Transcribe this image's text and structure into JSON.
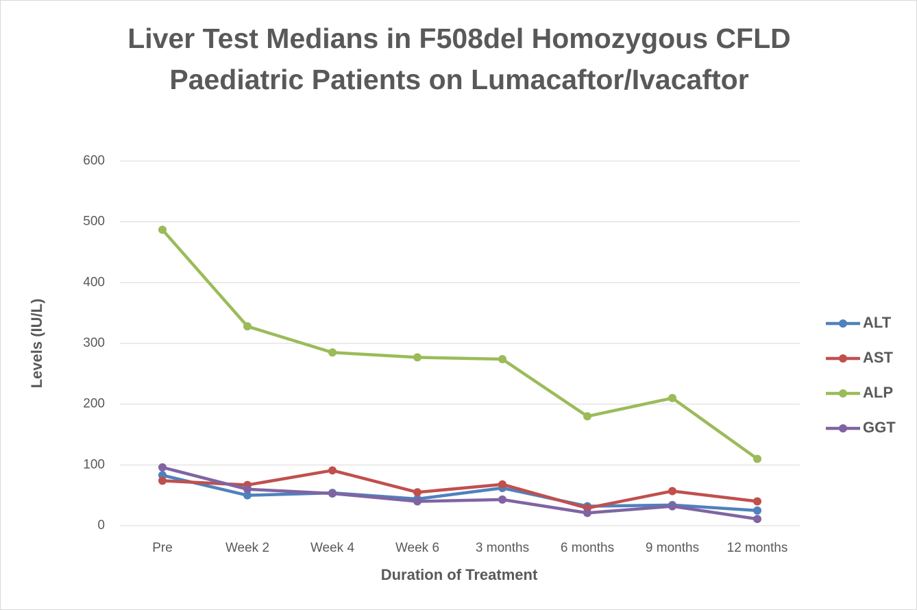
{
  "chart_data": {
    "type": "line",
    "title": "Liver Test Medians in F508del Homozygous CFLD Paediatric Patients on Lumacaftor/Ivacaftor",
    "x_label": "Duration of Treatment",
    "y_label": "Levels (IU/L)",
    "categories": [
      "Pre",
      "Week 2",
      "Week 4",
      "Week 6",
      "3 months",
      "6 months",
      "9 months",
      "12 months"
    ],
    "series": [
      {
        "name": "ALT",
        "color": "#4f81bd",
        "values": [
          83,
          50,
          54,
          44,
          62,
          32,
          34,
          25
        ]
      },
      {
        "name": "AST",
        "color": "#c0504d",
        "values": [
          74,
          67,
          91,
          55,
          68,
          29,
          57,
          40
        ]
      },
      {
        "name": "ALP",
        "color": "#9bbb59",
        "values": [
          487,
          328,
          285,
          277,
          274,
          180,
          210,
          110
        ]
      },
      {
        "name": "GGT",
        "color": "#8064a2",
        "values": [
          96,
          60,
          53,
          40,
          43,
          21,
          32,
          11
        ]
      }
    ],
    "ylim": [
      0,
      600
    ],
    "yticks": [
      0,
      100,
      200,
      300,
      400,
      500,
      600
    ],
    "grid": true,
    "legend": "right"
  }
}
